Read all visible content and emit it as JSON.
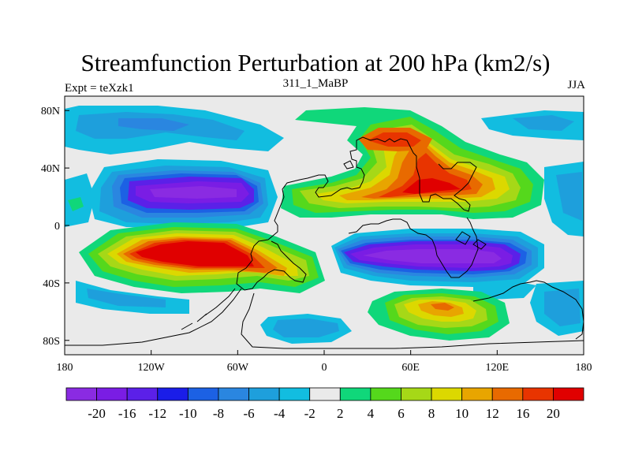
{
  "title": "Streamfunction Perturbation at 200 hPa (km2/s)",
  "subtitle": "311_1_MaBP",
  "left_label": "Expt = teXzk1",
  "right_label": "JJA",
  "map": {
    "x_ticks": [
      {
        "lon": -180,
        "label": "180"
      },
      {
        "lon": -120,
        "label": "120W"
      },
      {
        "lon": -60,
        "label": "60W"
      },
      {
        "lon": 0,
        "label": "0"
      },
      {
        "lon": 60,
        "label": "60E"
      },
      {
        "lon": 120,
        "label": "120E"
      },
      {
        "lon": 180,
        "label": "180"
      }
    ],
    "y_ticks": [
      {
        "lat": 80,
        "label": "80N"
      },
      {
        "lat": 40,
        "label": "40N"
      },
      {
        "lat": 0,
        "label": "0"
      },
      {
        "lat": -40,
        "label": "40S"
      },
      {
        "lat": -80,
        "label": "80S"
      }
    ],
    "lon_range": [
      -180,
      180
    ],
    "lat_range": [
      -90,
      90
    ]
  },
  "colorbar": {
    "levels": [
      "-20",
      "-16",
      "-12",
      "-10",
      "-8",
      "-6",
      "-4",
      "-2",
      "2",
      "4",
      "6",
      "8",
      "10",
      "12",
      "16",
      "20"
    ],
    "colors": [
      "#8a2be2",
      "#7a1de4",
      "#5b20e8",
      "#1a1de8",
      "#1c61e4",
      "#2a86e0",
      "#1e9fdc",
      "#12bde0",
      "#eaeaea",
      "#10d77a",
      "#55d81c",
      "#a6d817",
      "#dcd800",
      "#e8a500",
      "#e86a00",
      "#e83400",
      "#e00000"
    ]
  },
  "field_colors": {
    "background": "#eaeaea",
    "n4": "#12bde0",
    "n6": "#1e9fdc",
    "n8": "#2a86e0",
    "n10": "#1c61e4",
    "n12": "#5b20e8",
    "n16": "#7a1de4",
    "n20": "#8a2be2",
    "p2": "#10d77a",
    "p4": "#55d81c",
    "p6": "#a6d817",
    "p8": "#dcd800",
    "p10": "#e8a500",
    "p12": "#e86a00",
    "p16": "#e83400",
    "p20": "#e00000"
  }
}
